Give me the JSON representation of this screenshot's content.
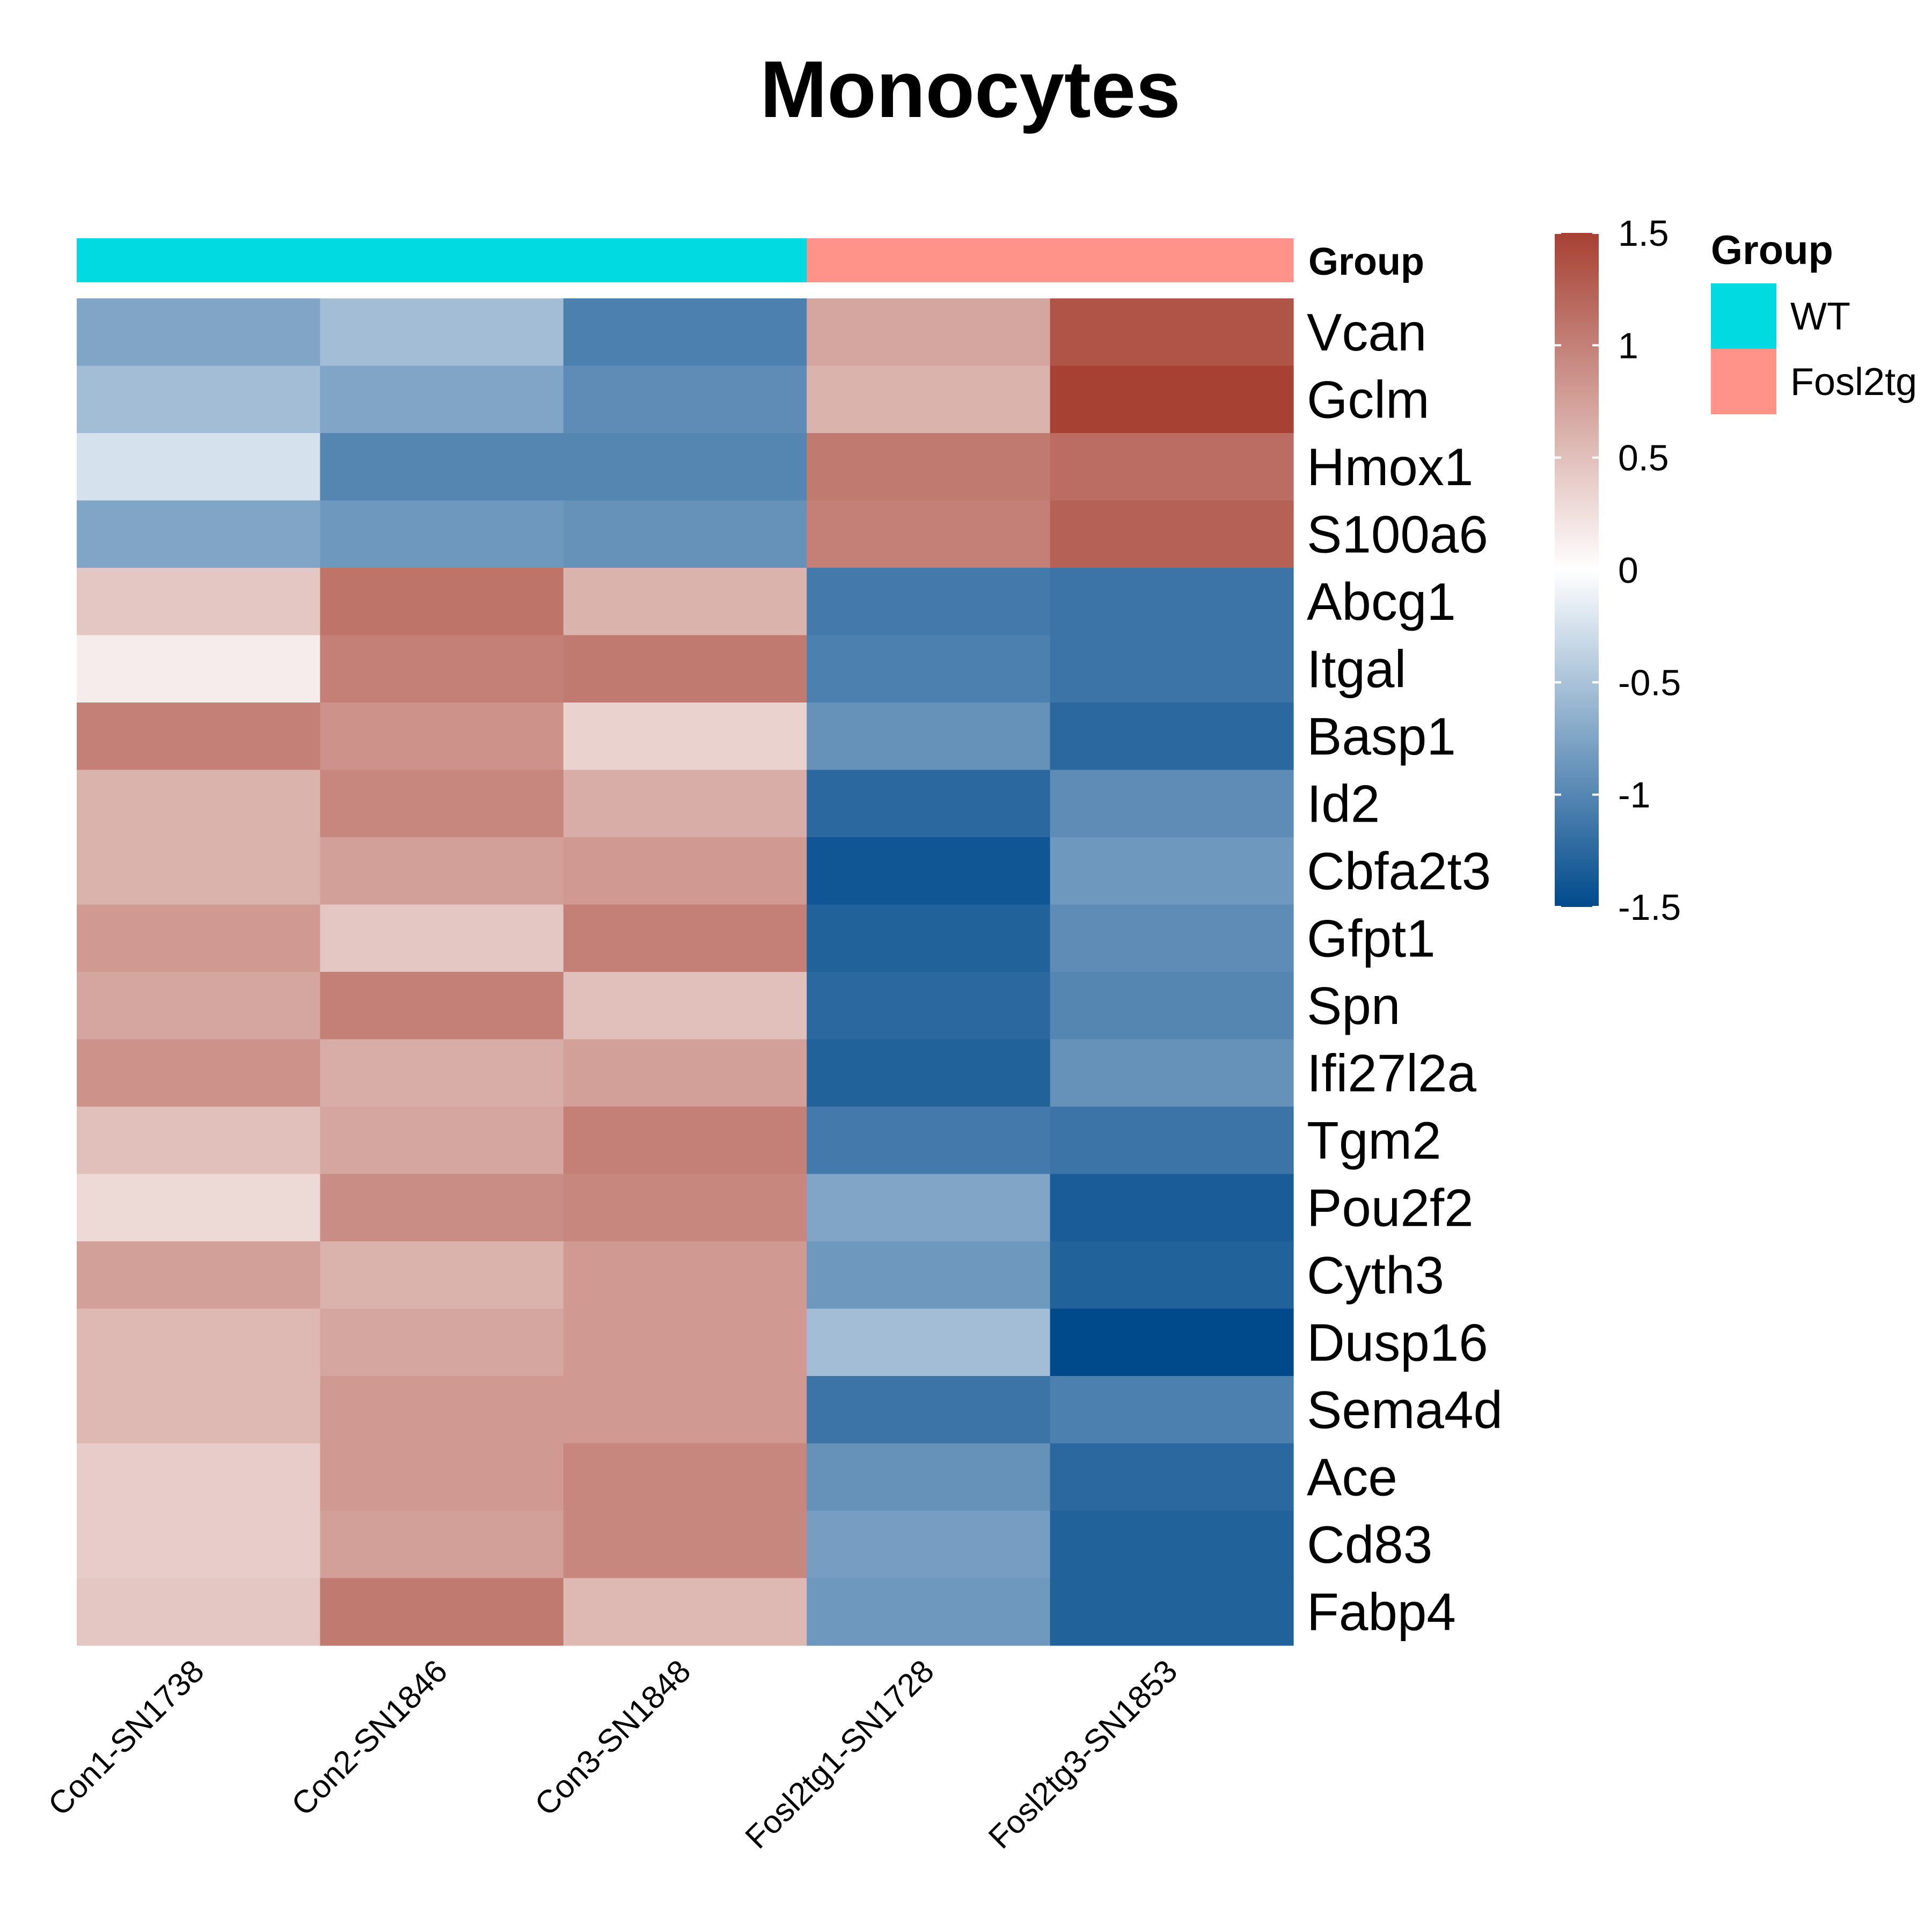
{
  "chart_data": {
    "type": "heatmap",
    "title": "Monocytes",
    "columns": [
      "Con1-SN1738",
      "Con2-SN1846",
      "Con3-SN1848",
      "Fosl2tg1-SN1728",
      "Fosl2tg3-SN1853"
    ],
    "rows": [
      "Vcan",
      "Gclm",
      "Hmox1",
      "S100a6",
      "Abcg1",
      "Itgal",
      "Basp1",
      "Id2",
      "Cbfa2t3",
      "Gfpt1",
      "Spn",
      "Ifi27l2a",
      "Tgm2",
      "Pou2f2",
      "Cyth3",
      "Dusp16",
      "Sema4d",
      "Ace",
      "Cd83",
      "Fabp4"
    ],
    "values": [
      [
        -0.75,
        -0.55,
        -1.05,
        0.7,
        1.35
      ],
      [
        -0.55,
        -0.75,
        -0.95,
        0.6,
        1.5
      ],
      [
        -0.25,
        -1.0,
        -1.0,
        1.05,
        1.15
      ],
      [
        -0.75,
        -0.85,
        -0.9,
        1.0,
        1.25
      ],
      [
        0.45,
        1.1,
        0.6,
        -1.1,
        -1.15
      ],
      [
        0.15,
        1.0,
        1.05,
        -1.05,
        -1.15
      ],
      [
        1.0,
        0.85,
        0.35,
        -0.9,
        -1.25
      ],
      [
        0.6,
        0.95,
        0.65,
        -1.25,
        -0.95
      ],
      [
        0.6,
        0.75,
        0.8,
        -1.4,
        -0.85
      ],
      [
        0.8,
        0.45,
        1.0,
        -1.3,
        -0.95
      ],
      [
        0.7,
        1.0,
        0.5,
        -1.25,
        -1.0
      ],
      [
        0.85,
        0.65,
        0.75,
        -1.3,
        -0.9
      ],
      [
        0.5,
        0.7,
        1.0,
        -1.1,
        -1.15
      ],
      [
        0.3,
        0.9,
        0.95,
        -0.75,
        -1.35
      ],
      [
        0.75,
        0.6,
        0.8,
        -0.85,
        -1.3
      ],
      [
        0.55,
        0.7,
        0.8,
        -0.55,
        -1.5
      ],
      [
        0.55,
        0.8,
        0.8,
        -1.15,
        -1.05
      ],
      [
        0.4,
        0.8,
        0.95,
        -0.9,
        -1.25
      ],
      [
        0.4,
        0.75,
        0.95,
        -0.8,
        -1.3
      ],
      [
        0.45,
        1.05,
        0.55,
        -0.85,
        -1.3
      ]
    ],
    "annotation": {
      "name": "Group",
      "column_groups": [
        "WT",
        "WT",
        "WT",
        "Fosl2tg",
        "Fosl2tg"
      ],
      "levels": [
        {
          "label": "WT",
          "color": "#00DAE0"
        },
        {
          "label": "Fosl2tg",
          "color": "#FF9289"
        }
      ]
    },
    "color_scale": {
      "range": [
        -1.5,
        1.5
      ],
      "ticks": [
        1.5,
        1,
        0.5,
        0,
        -0.5,
        -1,
        -1.5
      ],
      "low_color": "#004A8C",
      "mid_color": "#FFFFFF",
      "high_color": "#A64133"
    }
  }
}
